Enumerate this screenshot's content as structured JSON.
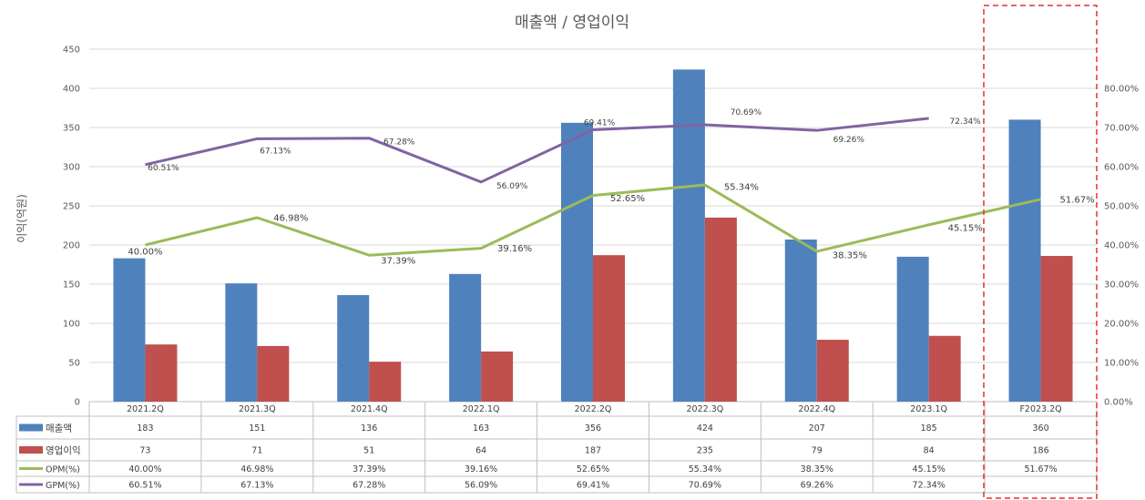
{
  "chart_data": {
    "type": "bar",
    "title": "매출액 / 영업이익",
    "ylabel": "이익(억원)",
    "ylim": [
      0,
      450
    ],
    "y_ticks": [
      "0",
      "50",
      "100",
      "150",
      "200",
      "250",
      "300",
      "350",
      "400",
      "450"
    ],
    "y2lim": [
      0,
      90
    ],
    "y2_ticks": [
      "0.00%",
      "10.00%",
      "20.00%",
      "30.00%",
      "40.00%",
      "50.00%",
      "60.00%",
      "70.00%",
      "80.00%"
    ],
    "categories": [
      "2021.2Q",
      "2021.3Q",
      "2021.4Q",
      "2022.1Q",
      "2022.2Q",
      "2022.3Q",
      "2022.4Q",
      "2023.1Q",
      "F2023.2Q"
    ],
    "series": [
      {
        "name": "매출액",
        "kind": "bar",
        "axis": "left",
        "color": "#4F81BD",
        "values": [
          183,
          151,
          136,
          163,
          356,
          424,
          207,
          185,
          360
        ],
        "labels": [
          "183",
          "151",
          "136",
          "163",
          "356",
          "424",
          "207",
          "185",
          "360"
        ]
      },
      {
        "name": "영업이익",
        "kind": "bar",
        "axis": "left",
        "color": "#C0504D",
        "values": [
          73,
          71,
          51,
          64,
          187,
          235,
          79,
          84,
          186
        ],
        "labels": [
          "73",
          "71",
          "51",
          "64",
          "187",
          "235",
          "79",
          "84",
          "186"
        ]
      },
      {
        "name": "OPM(%)",
        "kind": "line",
        "axis": "right",
        "color": "#9BBB59",
        "values": [
          40.0,
          46.98,
          37.39,
          39.16,
          52.65,
          55.34,
          38.35,
          45.15,
          51.67
        ],
        "labels": [
          "40.00%",
          "46.98%",
          "37.39%",
          "39.16%",
          "52.65%",
          "55.34%",
          "38.35%",
          "45.15%",
          "51.67%"
        ]
      },
      {
        "name": "GPM(%)",
        "kind": "line",
        "axis": "right",
        "color": "#8064A2",
        "values": [
          60.51,
          67.13,
          67.28,
          56.09,
          69.41,
          70.69,
          69.26,
          72.34,
          null
        ],
        "labels": [
          "60.51%",
          "67.13%",
          "67.28%",
          "56.09%",
          "69.41%",
          "70.69%",
          "69.26%",
          "72.34%",
          ""
        ]
      }
    ],
    "highlight_category": "F2023.2Q",
    "legend": "data table below the plot",
    "grid": true
  }
}
